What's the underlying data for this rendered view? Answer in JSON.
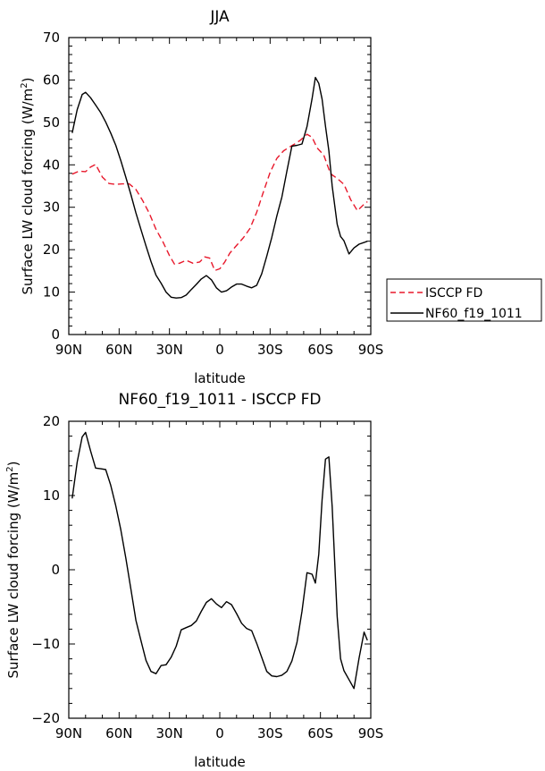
{
  "chart_data": [
    {
      "type": "line",
      "title": "JJA",
      "xlabel": "latitude",
      "ylabel": "Surface LW cloud forcing (W/m",
      "ylabel_sup": "2",
      "ylabel_close": ")",
      "xlim": [
        90,
        -90
      ],
      "ylim": [
        0,
        70
      ],
      "x_ticks": [
        90,
        60,
        30,
        0,
        -30,
        -60,
        -90
      ],
      "x_tick_labels": [
        "90N",
        "60N",
        "30N",
        "0",
        "30S",
        "60S",
        "90S"
      ],
      "y_ticks": [
        0,
        10,
        20,
        30,
        40,
        50,
        60,
        70
      ],
      "y_tick_labels": [
        "0",
        "10",
        "20",
        "30",
        "40",
        "50",
        "60",
        "70"
      ],
      "legend": {
        "position": "right-outside"
      },
      "series": [
        {
          "name": "ISCCP FD",
          "color": "#e8192c",
          "dash": "dashed",
          "x": [
            88,
            84,
            80,
            77,
            74,
            70,
            66,
            62,
            58,
            54,
            50,
            46,
            42,
            38,
            34,
            30,
            27,
            24,
            20,
            16,
            12,
            9,
            6,
            3,
            0,
            -3,
            -6,
            -10,
            -14,
            -18,
            -22,
            -26,
            -30,
            -34,
            -38,
            -42,
            -45,
            -48,
            -52,
            -55,
            -58,
            -62,
            -66,
            -70,
            -74,
            -78,
            -82,
            -86,
            -88
          ],
          "y": [
            37.8,
            38.5,
            38.4,
            39.5,
            40.1,
            37.1,
            35.6,
            35.4,
            35.5,
            35.5,
            34.2,
            31.6,
            28.6,
            24.8,
            21.9,
            18.6,
            16.6,
            16.8,
            17.5,
            16.8,
            17.1,
            18.3,
            18.0,
            15.1,
            15.5,
            17.1,
            19.2,
            21.0,
            22.8,
            25.0,
            28.8,
            33.6,
            38.2,
            41.5,
            43.3,
            44.3,
            45.0,
            45.8,
            47.2,
            46.5,
            44.0,
            42.3,
            37.9,
            36.8,
            35.4,
            31.8,
            29.2,
            30.7,
            31.3
          ]
        },
        {
          "name": "NF60_f19_1011",
          "color": "#000000",
          "dash": "solid",
          "x": [
            88,
            85,
            82,
            80,
            77,
            74,
            71,
            68,
            65,
            62,
            59,
            56,
            53,
            50,
            47,
            44,
            41,
            38,
            35,
            32,
            29,
            26,
            23,
            20,
            17,
            14,
            11,
            8,
            5,
            2,
            -1,
            -4,
            -7,
            -10,
            -13,
            -16,
            -19,
            -22,
            -25,
            -28,
            -31,
            -34,
            -37,
            -40,
            -43,
            -46,
            -49,
            -52,
            -55,
            -57,
            -59,
            -61,
            -63,
            -65,
            -67,
            -70,
            -72,
            -74,
            -77,
            -80,
            -83,
            -86,
            -88
          ],
          "y": [
            47.5,
            53.0,
            56.6,
            57.1,
            55.8,
            54.1,
            52.3,
            50.1,
            47.5,
            44.6,
            41.0,
            37.1,
            33.0,
            28.7,
            24.8,
            20.9,
            17.2,
            14.0,
            12.1,
            10.0,
            8.8,
            8.6,
            8.7,
            9.3,
            10.6,
            11.8,
            13.1,
            13.9,
            12.9,
            11.0,
            10.0,
            10.3,
            11.2,
            11.9,
            11.9,
            11.4,
            11.0,
            11.6,
            14.3,
            18.5,
            22.9,
            27.9,
            32.4,
            38.5,
            44.4,
            44.6,
            44.9,
            49.0,
            55.6,
            60.6,
            59.2,
            55.5,
            49.1,
            43.3,
            35.0,
            26.0,
            23.1,
            22.1,
            19.0,
            20.4,
            21.3,
            21.7,
            22.0
          ]
        }
      ]
    },
    {
      "type": "line",
      "title": "NF60_f19_1011 - ISCCP FD",
      "xlabel": "latitude",
      "ylabel": "Surface LW cloud forcing (W/m",
      "ylabel_sup": "2",
      "ylabel_close": ")",
      "xlim": [
        90,
        -90
      ],
      "ylim": [
        -20,
        20
      ],
      "x_ticks": [
        90,
        60,
        30,
        0,
        -30,
        -60,
        -90
      ],
      "x_tick_labels": [
        "90N",
        "60N",
        "30N",
        "0",
        "30S",
        "60S",
        "90S"
      ],
      "y_ticks": [
        -20,
        -10,
        0,
        10,
        20
      ],
      "y_tick_labels": [
        "−20",
        "−10",
        "0",
        "10",
        "20"
      ],
      "series": [
        {
          "name": "NF60_f19_1011 - ISCCP FD",
          "color": "#000000",
          "dash": "solid",
          "x": [
            88,
            85,
            82,
            80,
            77,
            74,
            71,
            68,
            65,
            62,
            59,
            56,
            53,
            50,
            47,
            44,
            41,
            38,
            35,
            32,
            29,
            26,
            23,
            20,
            17,
            14,
            11,
            8,
            5,
            2,
            -1,
            -4,
            -7,
            -10,
            -13,
            -16,
            -19,
            -22,
            -25,
            -28,
            -31,
            -34,
            -37,
            -40,
            -43,
            -46,
            -49,
            -52,
            -55,
            -57,
            -59,
            -61,
            -63,
            -65,
            -67,
            -70,
            -72,
            -74,
            -77,
            -80,
            -83,
            -86,
            -88
          ],
          "y": [
            9.6,
            14.5,
            17.9,
            18.5,
            16.0,
            13.7,
            13.6,
            13.5,
            11.4,
            8.6,
            5.4,
            1.6,
            -2.6,
            -6.8,
            -9.5,
            -12.2,
            -13.7,
            -14.0,
            -12.9,
            -12.8,
            -11.8,
            -10.3,
            -8.1,
            -7.8,
            -7.5,
            -6.9,
            -5.6,
            -4.4,
            -3.9,
            -4.6,
            -5.1,
            -4.3,
            -4.7,
            -5.9,
            -7.2,
            -7.9,
            -8.2,
            -9.9,
            -11.8,
            -13.7,
            -14.3,
            -14.4,
            -14.2,
            -13.7,
            -12.3,
            -9.8,
            -5.6,
            -0.4,
            -0.6,
            -1.8,
            2.1,
            9.4,
            14.9,
            15.2,
            8.5,
            -6.3,
            -12.0,
            -13.6,
            -14.8,
            -16.0,
            -11.9,
            -8.4,
            -9.5
          ]
        }
      ]
    }
  ]
}
